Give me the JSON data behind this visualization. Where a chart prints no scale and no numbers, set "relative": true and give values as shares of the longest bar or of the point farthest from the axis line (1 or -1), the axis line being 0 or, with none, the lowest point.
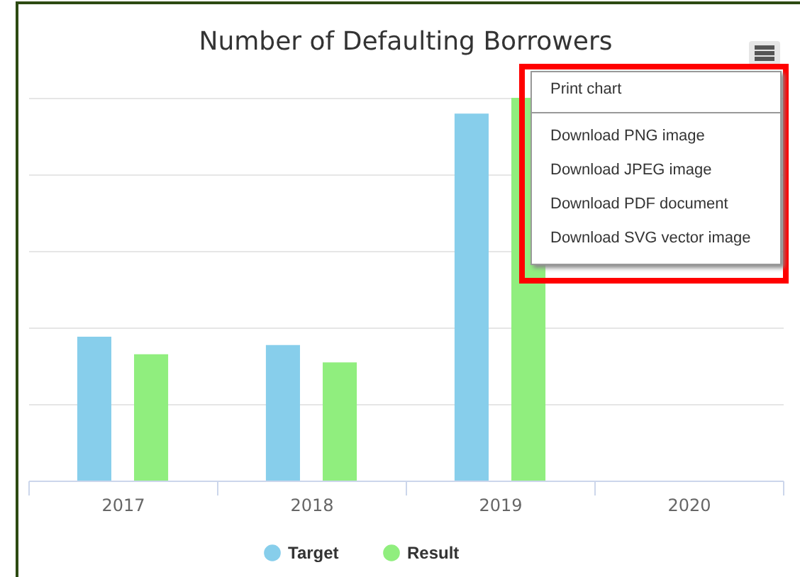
{
  "chart_data": {
    "type": "bar",
    "title": "Number of Defaulting Borrowers",
    "categories": [
      "2017",
      "2018",
      "2019",
      "2020"
    ],
    "series": [
      {
        "name": "Target",
        "color": "#87ceeb",
        "values": [
          0.376,
          0.354,
          0.959,
          null
        ]
      },
      {
        "name": "Result",
        "color": "#90ee7e",
        "values": [
          0.33,
          0.309,
          1,
          null
        ]
      }
    ],
    "relative": true,
    "grid": "y",
    "legend": "bottom",
    "annotations": [
      "Print chart",
      "Download PNG image",
      "Download JPEG image",
      "Download PDF document",
      "Download SVG vector image"
    ]
  }
}
